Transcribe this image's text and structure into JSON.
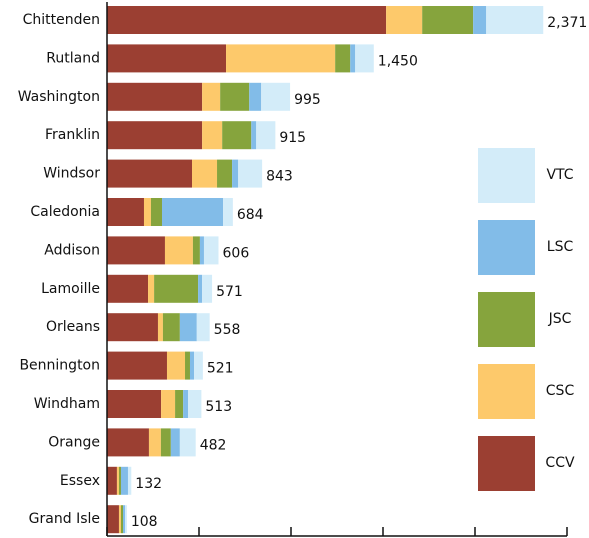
{
  "chart_data": {
    "type": "stacked-bar-horizontal",
    "categories": [
      "Chittenden",
      "Rutland",
      "Washington",
      "Franklin",
      "Windsor",
      "Caledonia",
      "Addison",
      "Lamoille",
      "Orleans",
      "Bennington",
      "Windham",
      "Orange",
      "Essex",
      "Grand Isle"
    ],
    "series": [
      {
        "name": "CCV",
        "color": "#9b3f32",
        "values": [
          1517,
          647,
          517,
          517,
          462,
          201,
          315,
          223,
          277,
          326,
          294,
          228,
          54,
          65
        ]
      },
      {
        "name": "CSC",
        "color": "#fdc96b",
        "values": [
          196,
          593,
          98,
          109,
          136,
          38,
          152,
          33,
          27,
          98,
          76,
          65,
          11,
          11
        ]
      },
      {
        "name": "JSC",
        "color": "#86a43d",
        "values": [
          277,
          82,
          158,
          158,
          82,
          60,
          38,
          239,
          92,
          27,
          44,
          54,
          11,
          11
        ]
      },
      {
        "name": "LSC",
        "color": "#82bce8",
        "values": [
          71,
          27,
          65,
          27,
          33,
          332,
          22,
          22,
          92,
          22,
          27,
          49,
          38,
          11
        ]
      },
      {
        "name": "VTC",
        "color": "#d3ecf9",
        "values": [
          310,
          101,
          157,
          104,
          130,
          53,
          79,
          54,
          70,
          48,
          72,
          86,
          18,
          10
        ]
      }
    ],
    "totals": [
      2371,
      1450,
      995,
      915,
      843,
      684,
      606,
      571,
      558,
      521,
      513,
      482,
      132,
      108
    ],
    "total_labels": [
      "2,371",
      "1,450",
      "995",
      "915",
      "843",
      "684",
      "606",
      "571",
      "558",
      "521",
      "513",
      "482",
      "132",
      "108"
    ],
    "xlim": [
      0,
      2500
    ],
    "xticks": [
      0,
      500,
      1000,
      1500,
      2000,
      2500
    ]
  }
}
